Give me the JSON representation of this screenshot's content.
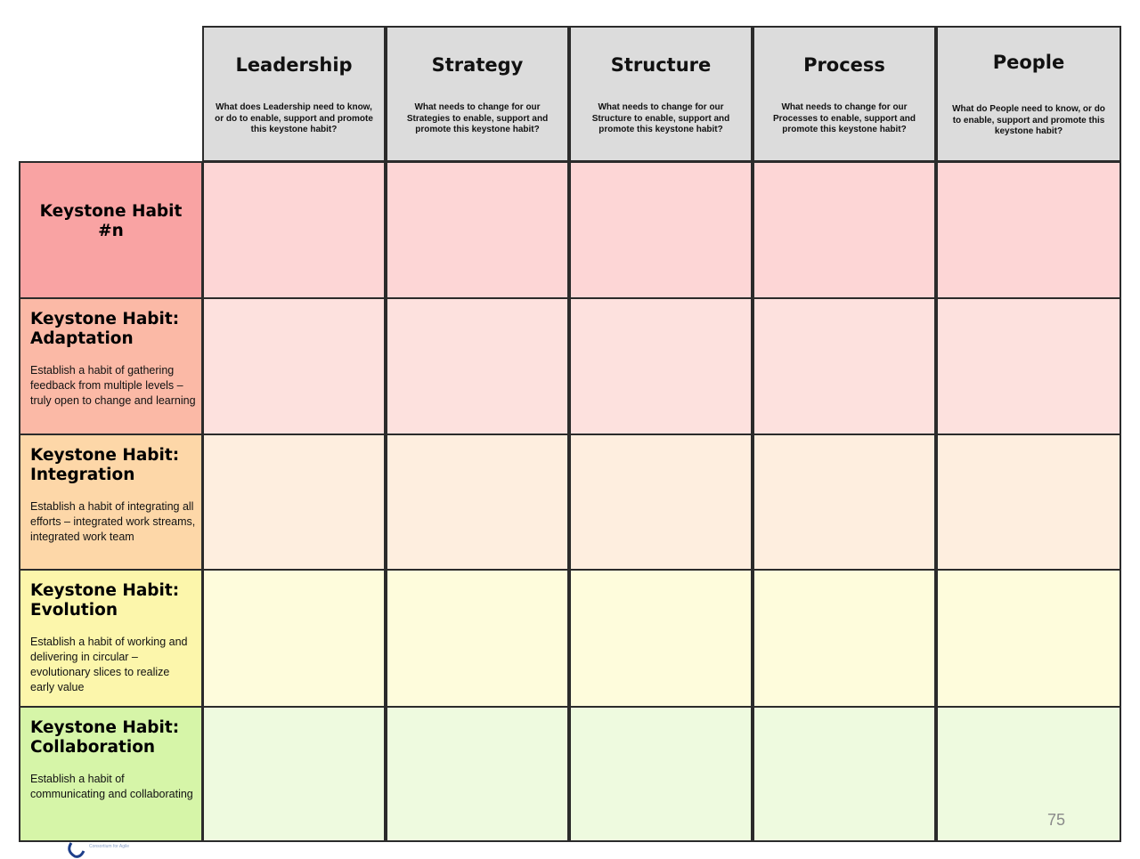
{
  "columns": [
    {
      "title": "Leadership",
      "question": "What does Leadership need to know, or do to enable, support and promote this keystone habit?"
    },
    {
      "title": "Strategy",
      "question": "What needs to change for our Strategies to enable, support and promote this keystone habit?"
    },
    {
      "title": "Structure",
      "question": "What needs to change for our Structure to enable, support and promote this keystone habit?"
    },
    {
      "title": "Process",
      "question": "What needs to change for our Processes to enable, support and promote this keystone habit?"
    },
    {
      "title": "People",
      "question": "What do People need to know, or do to enable, support and promote this keystone habit?"
    }
  ],
  "rows": [
    {
      "title": "Keystone Habit #n",
      "description": "",
      "head_color": "#f9a3a3",
      "cell_color": "#fdd6d6"
    },
    {
      "title": "Keystone Habit: Adaptation",
      "description": "Establish a habit of gathering feedback from multiple levels – truly open to change and learning",
      "head_color": "#fbb9a6",
      "cell_color": "#fde1de"
    },
    {
      "title": "Keystone Habit: Integration",
      "description": "Establish a habit of integrating all efforts – integrated work streams, integrated work team",
      "head_color": "#fdd7a8",
      "cell_color": "#feeedf"
    },
    {
      "title": "Keystone Habit: Evolution",
      "description": "Establish a habit of working and delivering in circular – evolutionary slices to realize early value",
      "head_color": "#fcf6ab",
      "cell_color": "#fefcdc"
    },
    {
      "title": "Keystone Habit: Collaboration",
      "description": "Establish a habit of communicating and collaborating",
      "head_color": "#d6f5a8",
      "cell_color": "#eefadf"
    }
  ],
  "page_number": "75",
  "logo_icon": "consortium-logo-icon"
}
